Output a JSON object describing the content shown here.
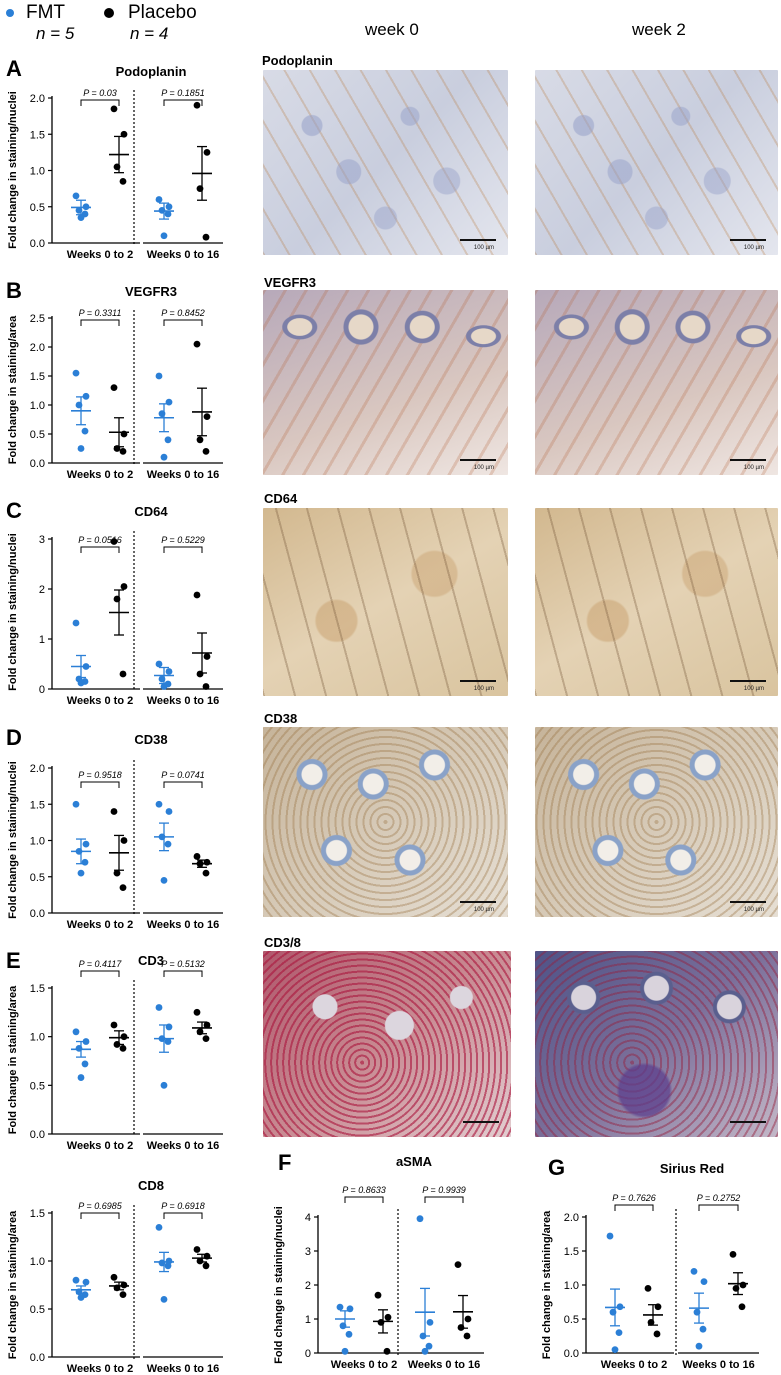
{
  "legend": {
    "items": [
      {
        "label": "FMT",
        "n": "n = 5",
        "color": "#2b7fd6"
      },
      {
        "label": "Placebo",
        "n": "n = 4",
        "color": "#000000"
      }
    ]
  },
  "image_columns": {
    "col1": "week 0",
    "col2": "week 2"
  },
  "image_labels": [
    "Podoplanin",
    "VEGFR3",
    "CD64",
    "CD38",
    "CD3/8"
  ],
  "scalebar_text": "100 µm",
  "colors": {
    "fmt": "#2b7fd6",
    "placebo": "#000000"
  },
  "chart_data": [
    {
      "type": "scatter",
      "panel": "A",
      "title": "Podoplanin",
      "ylabel": "Fold change in staining/nuclei",
      "ylim": [
        0,
        2.0
      ],
      "yticks": [
        "0.0",
        "0.5",
        "1.0",
        "1.5",
        "2.0"
      ],
      "groups": [
        {
          "label": "Weeks 0 to 2",
          "pvalue": "P = 0.03",
          "fmt": {
            "values": [
              0.65,
              0.5,
              0.45,
              0.4,
              0.35
            ],
            "mean": 0.49,
            "sem": 0.1
          },
          "placebo": {
            "values": [
              1.85,
              1.5,
              1.05,
              0.85
            ],
            "mean": 1.22,
            "sem": 0.25
          }
        },
        {
          "label": "Weeks 0 to 16",
          "pvalue": "P = 0.1851",
          "fmt": {
            "values": [
              0.6,
              0.5,
              0.45,
              0.4,
              0.1
            ],
            "mean": 0.44,
            "sem": 0.11
          },
          "placebo": {
            "values": [
              1.9,
              1.25,
              0.75,
              0.08
            ],
            "mean": 0.96,
            "sem": 0.37
          }
        }
      ]
    },
    {
      "type": "scatter",
      "panel": "B",
      "title": "VEGFR3",
      "ylabel": "Fold change in staining/area",
      "ylim": [
        0,
        2.5
      ],
      "yticks": [
        "0.0",
        "0.5",
        "1.0",
        "1.5",
        "2.0",
        "2.5"
      ],
      "groups": [
        {
          "label": "Weeks 0 to 2",
          "pvalue": "P = 0.3311",
          "fmt": {
            "values": [
              1.55,
              1.15,
              1.0,
              0.55,
              0.25
            ],
            "mean": 0.9,
            "sem": 0.24
          },
          "placebo": {
            "values": [
              1.3,
              0.5,
              0.25,
              0.2
            ],
            "mean": 0.53,
            "sem": 0.25
          }
        },
        {
          "label": "Weeks 0 to 16",
          "pvalue": "P = 0.8452",
          "fmt": {
            "values": [
              1.5,
              1.05,
              0.85,
              0.4,
              0.1
            ],
            "mean": 0.78,
            "sem": 0.24
          },
          "placebo": {
            "values": [
              2.05,
              0.8,
              0.4,
              0.2
            ],
            "mean": 0.88,
            "sem": 0.41
          }
        }
      ]
    },
    {
      "type": "scatter",
      "panel": "C",
      "title": "CD64",
      "ylabel": "Fold change in staining/nuclei",
      "ylim": [
        0,
        3
      ],
      "yticks": [
        "0",
        "1",
        "2",
        "3"
      ],
      "groups": [
        {
          "label": "Weeks 0 to 2",
          "pvalue": "P = 0.0516",
          "fmt": {
            "values": [
              1.32,
              0.45,
              0.2,
              0.15,
              0.12
            ],
            "mean": 0.45,
            "sem": 0.22
          },
          "placebo": {
            "values": [
              2.95,
              2.05,
              1.8,
              0.3
            ],
            "mean": 1.53,
            "sem": 0.45
          }
        },
        {
          "label": "Weeks 0 to 16",
          "pvalue": "P = 0.5229",
          "fmt": {
            "values": [
              0.5,
              0.35,
              0.2,
              0.1,
              0.05
            ],
            "mean": 0.27,
            "sem": 0.16
          },
          "placebo": {
            "values": [
              1.88,
              0.65,
              0.3,
              0.05
            ],
            "mean": 0.72,
            "sem": 0.4
          }
        }
      ]
    },
    {
      "type": "scatter",
      "panel": "D",
      "title": "CD38",
      "ylabel": "Fold change in staining/nuclei",
      "ylim": [
        0,
        2.0
      ],
      "yticks": [
        "0.0",
        "0.5",
        "1.0",
        "1.5",
        "2.0"
      ],
      "groups": [
        {
          "label": "Weeks 0 to 2",
          "pvalue": "P = 0.9518",
          "fmt": {
            "values": [
              1.5,
              0.95,
              0.85,
              0.7,
              0.55
            ],
            "mean": 0.85,
            "sem": 0.17
          },
          "placebo": {
            "values": [
              1.4,
              1.0,
              0.55,
              0.35
            ],
            "mean": 0.83,
            "sem": 0.24
          }
        },
        {
          "label": "Weeks 0 to 16",
          "pvalue": "P = 0.0741",
          "fmt": {
            "values": [
              1.5,
              1.4,
              1.05,
              0.95,
              0.45
            ],
            "mean": 1.05,
            "sem": 0.19
          },
          "placebo": {
            "values": [
              0.78,
              0.7,
              0.68,
              0.55
            ],
            "mean": 0.68,
            "sem": 0.05
          }
        }
      ]
    },
    {
      "type": "scatter",
      "panel": "E",
      "title": "CD3",
      "ylabel": "Fold change in staining/area",
      "ylim": [
        0,
        1.5
      ],
      "yticks": [
        "0.0",
        "0.5",
        "1.0",
        "1.5"
      ],
      "groups": [
        {
          "label": "Weeks 0 to 2",
          "pvalue": "P = 0.4117",
          "fmt": {
            "values": [
              1.05,
              0.95,
              0.88,
              0.72,
              0.58
            ],
            "mean": 0.87,
            "sem": 0.08
          },
          "placebo": {
            "values": [
              1.12,
              1.0,
              0.92,
              0.88
            ],
            "mean": 0.99,
            "sem": 0.07
          }
        },
        {
          "label": "Weeks 0 to 16",
          "pvalue": "P = 0.5132",
          "fmt": {
            "values": [
              1.3,
              1.1,
              0.98,
              0.95,
              0.5
            ],
            "mean": 0.98,
            "sem": 0.14
          },
          "placebo": {
            "values": [
              1.25,
              1.12,
              1.05,
              0.98
            ],
            "mean": 1.09,
            "sem": 0.06
          }
        }
      ]
    },
    {
      "type": "scatter",
      "panel": "",
      "title": "CD8",
      "ylabel": "Fold change in staining/area",
      "ylim": [
        0,
        1.5
      ],
      "yticks": [
        "0.0",
        "0.5",
        "1.0",
        "1.5"
      ],
      "groups": [
        {
          "label": "Weeks 0 to 2",
          "pvalue": "P = 0.6985",
          "fmt": {
            "values": [
              0.8,
              0.78,
              0.68,
              0.65,
              0.62
            ],
            "mean": 0.7,
            "sem": 0.04
          },
          "placebo": {
            "values": [
              0.83,
              0.75,
              0.72,
              0.65
            ],
            "mean": 0.74,
            "sem": 0.04
          }
        },
        {
          "label": "Weeks 0 to 16",
          "pvalue": "P = 0.6918",
          "fmt": {
            "values": [
              1.35,
              1.0,
              0.98,
              0.95,
              0.6
            ],
            "mean": 0.99,
            "sem": 0.1
          },
          "placebo": {
            "values": [
              1.12,
              1.05,
              1.0,
              0.95
            ],
            "mean": 1.03,
            "sem": 0.04
          }
        }
      ]
    },
    {
      "type": "scatter",
      "panel": "F",
      "title": "aSMA",
      "ylabel": "Fold change in staining/nuclei",
      "ylim": [
        0,
        4
      ],
      "yticks": [
        "0",
        "1",
        "2",
        "3",
        "4"
      ],
      "groups": [
        {
          "label": "Weeks 0 to 2",
          "pvalue": "P = 0.8633",
          "fmt": {
            "values": [
              1.35,
              1.3,
              0.8,
              0.55,
              0.05
            ],
            "mean": 1.0,
            "sem": 0.24
          },
          "placebo": {
            "values": [
              1.7,
              1.05,
              0.9,
              0.05
            ],
            "mean": 0.93,
            "sem": 0.34
          }
        },
        {
          "label": "Weeks 0 to 16",
          "pvalue": "P = 0.9939",
          "fmt": {
            "values": [
              3.95,
              0.9,
              0.5,
              0.2,
              0.05
            ],
            "mean": 1.2,
            "sem": 0.7
          },
          "placebo": {
            "values": [
              2.6,
              1.0,
              0.75,
              0.5
            ],
            "mean": 1.21,
            "sem": 0.48
          }
        }
      ]
    },
    {
      "type": "scatter",
      "panel": "G",
      "title": "Sirius Red",
      "ylabel": "Fold change in staining/area",
      "ylim": [
        0,
        2.0
      ],
      "yticks": [
        "0.0",
        "0.5",
        "1.0",
        "1.5",
        "2.0"
      ],
      "groups": [
        {
          "label": "Weeks 0 to 2",
          "pvalue": "P = 0.7626",
          "fmt": {
            "values": [
              1.72,
              0.68,
              0.6,
              0.3,
              0.05
            ],
            "mean": 0.67,
            "sem": 0.27
          },
          "placebo": {
            "values": [
              0.95,
              0.68,
              0.45,
              0.28
            ],
            "mean": 0.56,
            "sem": 0.15
          }
        },
        {
          "label": "Weeks 0 to 16",
          "pvalue": "P = 0.2752",
          "fmt": {
            "values": [
              1.2,
              1.05,
              0.6,
              0.35,
              0.1
            ],
            "mean": 0.66,
            "sem": 0.22
          },
          "placebo": {
            "values": [
              1.45,
              1.0,
              0.95,
              0.68
            ],
            "mean": 1.02,
            "sem": 0.16
          }
        }
      ]
    }
  ]
}
